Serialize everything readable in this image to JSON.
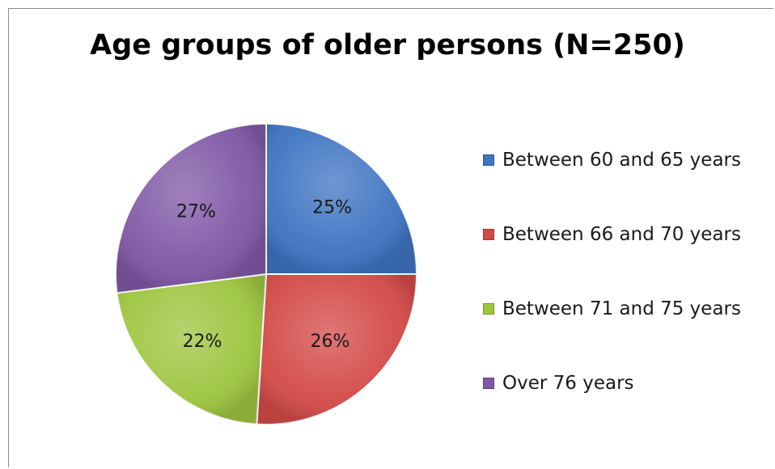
{
  "chart_data": {
    "type": "pie",
    "title": "Age groups of older persons (N=250)",
    "legend_position": "right",
    "slices": [
      {
        "name": "Between 60 and 65 years",
        "value": 25,
        "label": "25%",
        "color": "#3f74c2"
      },
      {
        "name": "Between 66 and 70 years",
        "value": 26,
        "label": "26%",
        "color": "#d34a47"
      },
      {
        "name": "Between 71 and 75 years",
        "value": 22,
        "label": "22%",
        "color": "#9dc53f"
      },
      {
        "name": "Over 76 years",
        "value": 27,
        "label": "27%",
        "color": "#8058a6"
      }
    ]
  }
}
